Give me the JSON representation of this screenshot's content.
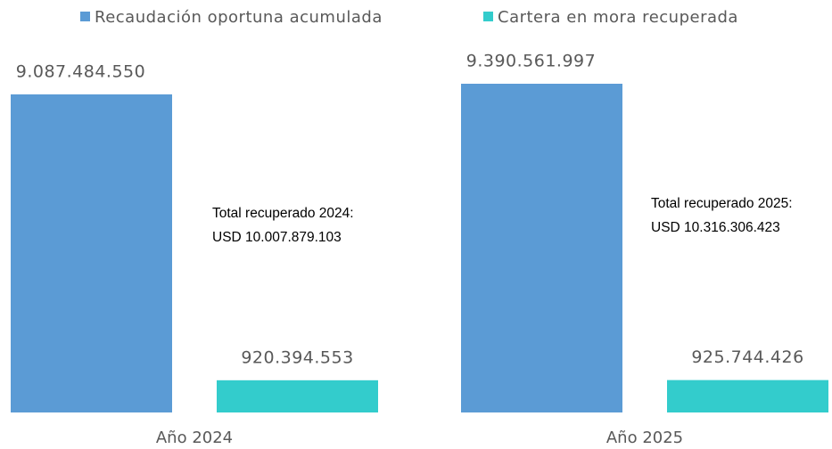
{
  "chart_data": {
    "type": "bar",
    "categories": [
      "Año 2024",
      "Año 2025"
    ],
    "series": [
      {
        "name": "Recaudación oportuna acumulada",
        "color": "#5b9bd5",
        "values": [
          9087484550,
          9390561997
        ],
        "value_labels": [
          "9.087.484.550",
          "9.390.561.997"
        ]
      },
      {
        "name": "Cartera en mora recuperada",
        "color": "#33cccc",
        "values": [
          920394553,
          925744426
        ],
        "value_labels": [
          "920.394.553",
          "925.744.426"
        ]
      }
    ],
    "legend": "top",
    "annotations": [
      {
        "lines": [
          "Total recuperado 2024:",
          "USD 10.007.879.103"
        ]
      },
      {
        "lines": [
          "Total recuperado 2025:",
          "USD 10.316.306.423"
        ]
      }
    ]
  }
}
